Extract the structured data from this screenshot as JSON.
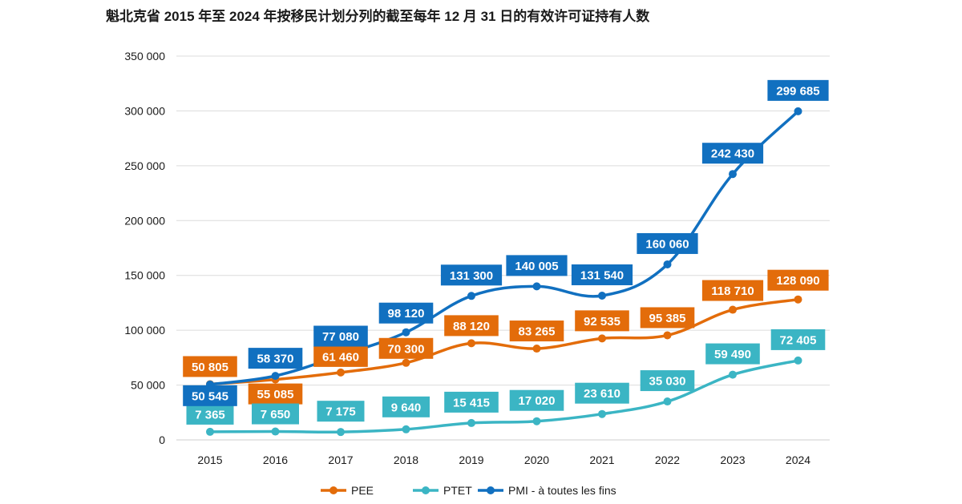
{
  "chart_data": {
    "type": "line",
    "title": "魁北克省 2015 年至 2024 年按移民计划分列的截至每年 12 月 31 日的有效许可证持有人数",
    "xlabel": "",
    "ylabel": "",
    "ylim": [
      0,
      350000
    ],
    "yticks": [
      0,
      50000,
      100000,
      150000,
      200000,
      250000,
      300000,
      350000
    ],
    "ytick_labels": [
      "0",
      "50 000",
      "100 000",
      "150 000",
      "200 000",
      "250 000",
      "300 000",
      "350 000"
    ],
    "categories": [
      "2015",
      "2016",
      "2017",
      "2018",
      "2019",
      "2020",
      "2021",
      "2022",
      "2023",
      "2024"
    ],
    "grid": true,
    "legend_position": "bottom",
    "series": [
      {
        "name": "PEE",
        "color": "#E36C0A",
        "values": [
          50805,
          55085,
          61460,
          70300,
          88120,
          83265,
          92535,
          95385,
          118710,
          128090
        ],
        "labels": [
          "50 805",
          "55 085",
          "61 460",
          "70 300",
          "88 120",
          "83 265",
          "92 535",
          "95 385",
          "118 710",
          "128 090"
        ]
      },
      {
        "name": "PTET",
        "color": "#3BB5C4",
        "values": [
          7365,
          7650,
          7175,
          9640,
          15415,
          17020,
          23610,
          35030,
          59490,
          72405
        ],
        "labels": [
          "7 365",
          "7 650",
          "7 175",
          "9 640",
          "15 415",
          "17 020",
          "23 610",
          "35 030",
          "59 490",
          "72 405"
        ]
      },
      {
        "name": "PMI - à toutes les fins",
        "color": "#1170C0",
        "values": [
          50545,
          58370,
          77080,
          98120,
          131300,
          140005,
          131540,
          160060,
          242430,
          299685
        ],
        "labels": [
          "50 545",
          "58 370",
          "77 080",
          "98 120",
          "131 300",
          "140 005",
          "131 540",
          "160 060",
          "242 430",
          "299 685"
        ]
      }
    ]
  }
}
